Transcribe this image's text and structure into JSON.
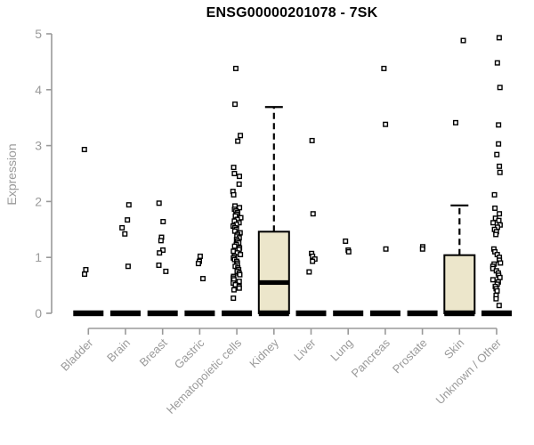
{
  "chart_data": {
    "type": "boxplot",
    "title": "ENSG00000201078 - 7SK",
    "ylabel": "Expression",
    "xlabel": "",
    "ylim": [
      0,
      5
    ],
    "yticks": [
      "0",
      "1",
      "2",
      "3",
      "4",
      "5"
    ],
    "grid": false,
    "legend": false,
    "categories": [
      "Bladder",
      "Brain",
      "Breast",
      "Gastric",
      "Hematopoietic cells",
      "Kidney",
      "Liver",
      "Lung",
      "Pancreas",
      "Prostate",
      "Skin",
      "Unknown / Other"
    ],
    "boxes": [
      {
        "category": "Bladder",
        "q1": 0,
        "median": 0,
        "q3": 0,
        "whisker_low": 0,
        "whisker_high": 0,
        "outliers": [
          2.93,
          0.78,
          0.7
        ]
      },
      {
        "category": "Brain",
        "q1": 0,
        "median": 0,
        "q3": 0,
        "whisker_low": 0,
        "whisker_high": 0,
        "outliers": [
          1.94,
          1.67,
          1.53,
          1.42,
          0.84
        ]
      },
      {
        "category": "Breast",
        "q1": 0,
        "median": 0,
        "q3": 0,
        "whisker_low": 0,
        "whisker_high": 0,
        "outliers": [
          1.97,
          1.64,
          1.36,
          1.3,
          1.13,
          1.08,
          0.86,
          0.75
        ]
      },
      {
        "category": "Gastric",
        "q1": 0,
        "median": 0,
        "q3": 0,
        "whisker_low": 0,
        "whisker_high": 0,
        "outliers": [
          1.02,
          0.93,
          0.89,
          0.62
        ]
      },
      {
        "category": "Hematopoietic cells",
        "q1": 0,
        "median": 0,
        "q3": 0,
        "whisker_low": 0,
        "whisker_high": 0,
        "outliers": [
          4.38,
          3.74,
          3.18,
          3.08,
          2.61,
          2.5,
          2.45,
          2.31,
          2.18,
          2.12,
          1.92,
          1.89,
          1.86,
          1.83,
          1.8,
          1.77,
          1.74,
          1.71,
          1.68,
          1.65,
          1.62,
          1.59,
          1.56,
          1.53,
          1.5,
          1.47,
          1.44,
          1.41,
          1.38,
          1.35,
          1.32,
          1.29,
          1.26,
          1.23,
          1.2,
          1.17,
          1.14,
          1.11,
          1.08,
          1.05,
          1.02,
          0.99,
          0.96,
          0.93,
          0.9,
          0.87,
          0.84,
          0.81,
          0.78,
          0.75,
          0.72,
          0.69,
          0.66,
          0.63,
          0.6,
          0.57,
          0.54,
          0.51,
          0.48,
          0.45,
          0.42,
          0.27
        ]
      },
      {
        "category": "Kidney",
        "q1": 0,
        "median": 0.55,
        "q3": 1.46,
        "whisker_low": 0,
        "whisker_high": 3.69,
        "outliers": []
      },
      {
        "category": "Liver",
        "q1": 0,
        "median": 0,
        "q3": 0,
        "whisker_low": 0,
        "whisker_high": 0,
        "outliers": [
          3.09,
          1.78,
          1.07,
          1.02,
          0.97,
          0.93,
          0.74
        ]
      },
      {
        "category": "Lung",
        "q1": 0,
        "median": 0,
        "q3": 0,
        "whisker_low": 0,
        "whisker_high": 0,
        "outliers": [
          1.29,
          1.13,
          1.1
        ]
      },
      {
        "category": "Pancreas",
        "q1": 0,
        "median": 0,
        "q3": 0,
        "whisker_low": 0,
        "whisker_high": 0,
        "outliers": [
          4.38,
          3.38,
          1.15
        ]
      },
      {
        "category": "Prostate",
        "q1": 0,
        "median": 0,
        "q3": 0,
        "whisker_low": 0,
        "whisker_high": 0,
        "outliers": [
          1.19,
          1.15
        ]
      },
      {
        "category": "Skin",
        "q1": 0,
        "median": 0,
        "q3": 1.04,
        "whisker_low": 0,
        "whisker_high": 1.93,
        "outliers": [
          4.88,
          3.41
        ]
      },
      {
        "category": "Unknown / Other",
        "q1": 0,
        "median": 0,
        "q3": 0,
        "whisker_low": 0,
        "whisker_high": 0,
        "outliers": [
          4.93,
          4.48,
          4.04,
          3.37,
          3.03,
          2.84,
          2.63,
          2.52,
          2.12,
          1.88,
          1.78,
          1.7,
          1.66,
          1.62,
          1.58,
          1.54,
          1.5,
          1.46,
          1.41,
          1.15,
          1.1,
          1.05,
          1.0,
          0.95,
          0.9,
          0.88,
          0.84,
          0.8,
          0.76,
          0.72,
          0.68,
          0.64,
          0.6,
          0.56,
          0.52,
          0.48,
          0.44,
          0.4,
          0.32,
          0.26,
          0.14
        ]
      }
    ],
    "colors": {
      "box_fill": "#ece6cb",
      "box_border": "#000000",
      "median": "#000000",
      "whisker": "#000000",
      "outlier_fill": "#ffffff",
      "outlier_border": "#000000",
      "axis": "#9a9a9a",
      "tick_label": "#9a9a9a",
      "title": "#000000",
      "background": "#ffffff"
    }
  }
}
